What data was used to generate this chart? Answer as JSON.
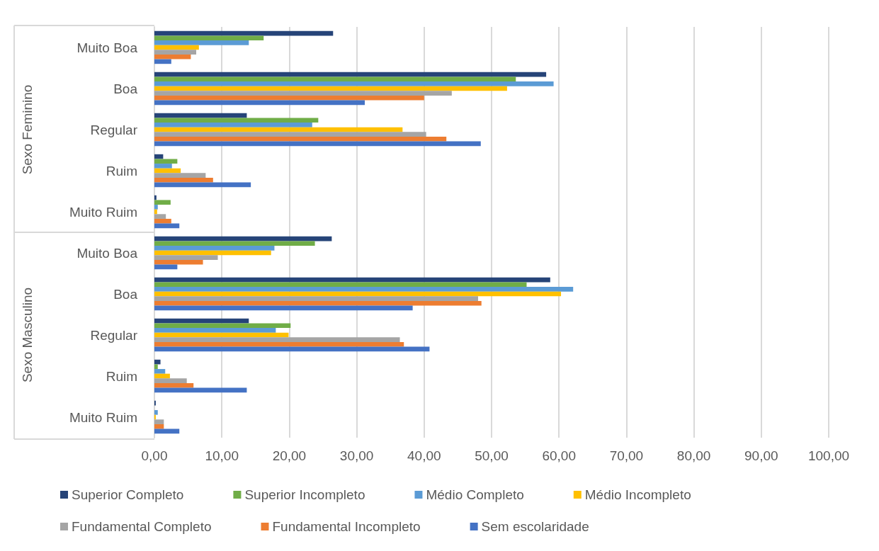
{
  "chart_data": {
    "type": "bar",
    "orientation": "horizontal",
    "categories": [
      "Muito Boa",
      "Boa",
      "Regular",
      "Ruim",
      "Muito Ruim",
      "Muito Boa",
      "Boa",
      "Regular",
      "Ruim",
      "Muito Ruim"
    ],
    "annotations": [
      "Sexo Feminino",
      "Sexo Masculino"
    ],
    "series": [
      {
        "name": "Superior Completo",
        "color": "#264478",
        "values": [
          26.5,
          58.1,
          13.7,
          1.3,
          0.3,
          26.3,
          58.7,
          14.0,
          0.9,
          0.2
        ]
      },
      {
        "name": "Superior Incompleto",
        "color": "#70ad47",
        "values": [
          16.2,
          53.6,
          24.3,
          3.4,
          2.4,
          23.8,
          55.2,
          20.2,
          0.5,
          0
        ]
      },
      {
        "name": "Médio Completo",
        "color": "#5b9bd5",
        "values": [
          14.0,
          59.2,
          23.4,
          2.6,
          0.5,
          17.8,
          62.1,
          18.0,
          1.6,
          0.5
        ]
      },
      {
        "name": "Médio Incompleto",
        "color": "#ffc000",
        "values": [
          6.6,
          52.3,
          36.8,
          3.9,
          0.4,
          17.3,
          60.3,
          19.9,
          2.3,
          0.2
        ]
      },
      {
        "name": "Fundamental Completo",
        "color": "#a5a5a5",
        "values": [
          6.2,
          44.1,
          40.3,
          7.6,
          1.7,
          9.4,
          48.0,
          36.4,
          4.8,
          1.4
        ]
      },
      {
        "name": "Fundamental Incompleto",
        "color": "#ed7d31",
        "values": [
          5.4,
          40.0,
          43.3,
          8.7,
          2.5,
          7.2,
          48.5,
          37.0,
          5.8,
          1.4
        ]
      },
      {
        "name": "Sem escolaridade",
        "color": "#4472c4",
        "values": [
          2.5,
          31.2,
          48.4,
          14.3,
          3.7,
          3.4,
          38.3,
          40.8,
          13.7,
          3.7
        ]
      }
    ],
    "xlim": [
      0,
      100
    ],
    "xticks": [
      {
        "value": 0,
        "label": "0,00"
      },
      {
        "value": 10,
        "label": "10,00"
      },
      {
        "value": 20,
        "label": "20,00"
      },
      {
        "value": 30,
        "label": "30,00"
      },
      {
        "value": 40,
        "label": "40,00"
      },
      {
        "value": 50,
        "label": "50,00"
      },
      {
        "value": 60,
        "label": "60,00"
      },
      {
        "value": 70,
        "label": "70,00"
      },
      {
        "value": 80,
        "label": "80,00"
      },
      {
        "value": 90,
        "label": "90,00"
      },
      {
        "value": 100,
        "label": "100,00"
      }
    ],
    "grid": "x",
    "legend": "bottom"
  }
}
